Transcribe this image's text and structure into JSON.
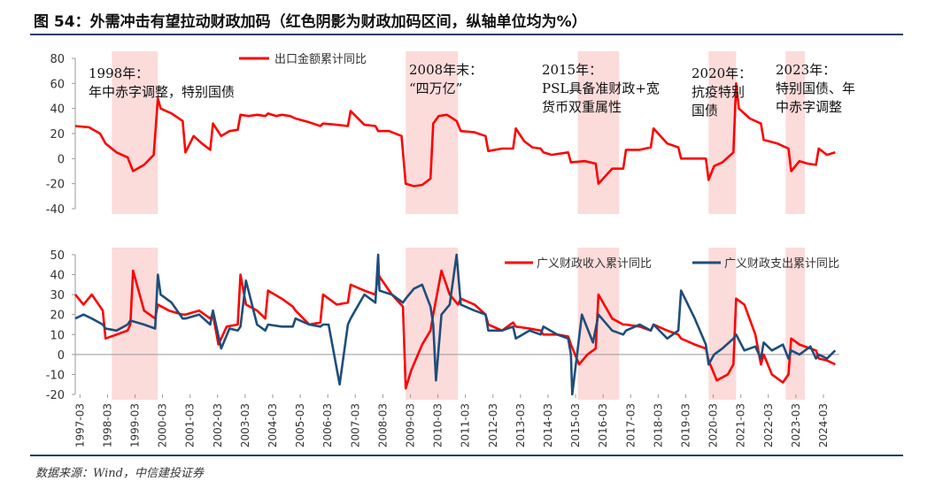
{
  "figure": {
    "title": "图 54：外需冲击有望拉动财政加码（红色阴影为财政加码区间，纵轴单位均为%）",
    "source": "数据来源：Wind，中信建投证券"
  },
  "colors": {
    "red": "#ff0000",
    "blue": "#1f4e79",
    "shade": "#fbd5d5",
    "rule": "#14406b",
    "axis": "#999999"
  },
  "chart_data": [
    {
      "type": "line",
      "title": "",
      "xlabel": "",
      "ylabel": "%",
      "ylim": [
        -40,
        80
      ],
      "yticks": [
        "80",
        "60",
        "40",
        "20",
        "0",
        "-20",
        "-40"
      ],
      "legend": "top-left",
      "shaded_ranges": [
        [
          1998.33,
          2000.0
        ],
        [
          2009.0,
          2010.9
        ],
        [
          2015.25,
          2016.75
        ],
        [
          2020.0,
          2021.0
        ],
        [
          2022.8,
          2023.5
        ]
      ],
      "annotations": [
        {
          "lines": [
            "1998年：",
            "年中赤字调整，特别国债"
          ]
        },
        {
          "lines": [
            "2008年末：",
            "“四万亿”"
          ]
        },
        {
          "lines": [
            "2015年：",
            "PSL具备准财政+宽",
            "货币双重属性"
          ]
        },
        {
          "lines": [
            "2020年：",
            "抗疫特别",
            "国债"
          ]
        },
        {
          "lines": [
            "2023年：",
            "特别国债、年",
            "中赤字调整"
          ]
        }
      ],
      "series": [
        {
          "name": "出口金额累计同比",
          "color": "red",
          "x": [
            1997.0,
            1997.5,
            1997.9,
            1998.1,
            1998.5,
            1998.9,
            1999.1,
            1999.5,
            1999.85,
            2000.0,
            2000.1,
            2000.5,
            2000.9,
            2001.0,
            2001.3,
            2001.6,
            2001.9,
            2002.0,
            2002.3,
            2002.6,
            2002.9,
            2003.0,
            2003.3,
            2003.6,
            2003.9,
            2004.0,
            2004.3,
            2004.5,
            2004.8,
            2005.0,
            2005.5,
            2005.9,
            2006.0,
            2006.5,
            2006.9,
            2007.0,
            2007.5,
            2007.9,
            2008.0,
            2008.4,
            2008.85,
            2009.0,
            2009.3,
            2009.6,
            2009.9,
            2010.0,
            2010.2,
            2010.5,
            2010.85,
            2011.0,
            2011.5,
            2011.9,
            2012.0,
            2012.5,
            2012.9,
            2013.0,
            2013.3,
            2013.6,
            2013.9,
            2014.0,
            2014.3,
            2014.6,
            2014.9,
            2015.0,
            2015.5,
            2015.9,
            2016.0,
            2016.5,
            2016.9,
            2017.0,
            2017.5,
            2017.9,
            2018.0,
            2018.5,
            2018.9,
            2019.0,
            2019.5,
            2019.9,
            2020.0,
            2020.2,
            2020.5,
            2020.9,
            2021.0,
            2021.1,
            2021.5,
            2021.9,
            2022.0,
            2022.5,
            2022.9,
            2023.0,
            2023.3,
            2023.6,
            2023.9,
            2024.0,
            2024.3,
            2024.6
          ],
          "y": [
            26,
            25,
            20,
            12,
            5,
            1,
            -10,
            -5,
            3,
            48,
            40,
            36,
            30,
            5,
            18,
            12,
            7,
            28,
            18,
            22,
            23,
            35,
            34,
            35,
            34,
            36,
            34,
            35,
            34,
            32,
            29,
            26,
            28,
            27,
            26,
            38,
            27,
            26,
            22,
            22,
            18,
            -20,
            -22,
            -21,
            -16,
            28,
            34,
            35,
            30,
            22,
            21,
            18,
            6,
            8,
            8,
            24,
            14,
            9,
            8,
            5,
            3,
            4,
            5,
            -3,
            -2,
            -4,
            -20,
            -8,
            -8,
            7,
            7,
            9,
            24,
            12,
            9,
            0,
            0,
            0,
            -17,
            -6,
            -3,
            5,
            60,
            40,
            32,
            28,
            15,
            12,
            8,
            -10,
            -2,
            -4,
            -5,
            8,
            3,
            5
          ]
        }
      ]
    },
    {
      "type": "line",
      "title": "",
      "xlabel": "",
      "ylabel": "%",
      "ylim": [
        -20,
        50
      ],
      "yticks": [
        "50",
        "40",
        "30",
        "20",
        "10",
        "0",
        "-10",
        "-20"
      ],
      "legend": "top-right",
      "categories": [
        "1997-03",
        "1998-03",
        "1999-03",
        "2000-03",
        "2001-03",
        "2002-03",
        "2003-03",
        "2004-03",
        "2005-03",
        "2006-03",
        "2007-03",
        "2008-03",
        "2009-03",
        "2010-03",
        "2011-03",
        "2012-03",
        "2013-03",
        "2014-03",
        "2015-03",
        "2016-03",
        "2017-03",
        "2018-03",
        "2019-03",
        "2020-03",
        "2021-03",
        "2022-03",
        "2023-03",
        "2024-03"
      ],
      "shaded_ranges": [
        [
          1998.33,
          2000.0
        ],
        [
          2009.0,
          2010.9
        ],
        [
          2015.25,
          2016.75
        ],
        [
          2020.0,
          2021.0
        ],
        [
          2022.8,
          2023.5
        ]
      ],
      "series": [
        {
          "name": "广义财政收入累计同比",
          "color": "red",
          "x": [
            1997.0,
            1997.3,
            1997.6,
            1998.0,
            1998.1,
            1998.5,
            1998.9,
            1999.0,
            1999.1,
            1999.5,
            1999.9,
            2000.0,
            2000.4,
            2000.9,
            2001.0,
            2001.5,
            2001.9,
            2002.0,
            2002.2,
            2002.5,
            2002.9,
            2003.0,
            2003.2,
            2003.6,
            2003.9,
            2004.0,
            2004.5,
            2004.9,
            2005.0,
            2005.5,
            2005.9,
            2006.0,
            2006.5,
            2006.9,
            2007.0,
            2007.5,
            2007.9,
            2008.0,
            2008.5,
            2008.9,
            2009.0,
            2009.2,
            2009.6,
            2009.9,
            2010.0,
            2010.3,
            2010.6,
            2010.9,
            2011.0,
            2011.5,
            2011.9,
            2012.0,
            2012.5,
            2012.9,
            2013.0,
            2013.5,
            2013.9,
            2014.0,
            2014.5,
            2014.9,
            2015.0,
            2015.3,
            2015.6,
            2015.9,
            2016.0,
            2016.5,
            2016.9,
            2017.0,
            2017.5,
            2017.9,
            2018.0,
            2018.5,
            2018.9,
            2019.0,
            2019.5,
            2019.9,
            2020.0,
            2020.3,
            2020.7,
            2020.9,
            2021.0,
            2021.3,
            2021.7,
            2021.9,
            2022.0,
            2022.3,
            2022.7,
            2022.9,
            2023.0,
            2023.3,
            2023.7,
            2023.9,
            2024.0,
            2024.3,
            2024.6
          ],
          "y": [
            30,
            25,
            30,
            22,
            8,
            10,
            12,
            15,
            42,
            22,
            18,
            25,
            22,
            20,
            20,
            22,
            18,
            20,
            5,
            14,
            15,
            40,
            25,
            22,
            18,
            32,
            28,
            24,
            22,
            15,
            16,
            30,
            25,
            26,
            35,
            32,
            30,
            40,
            30,
            24,
            -17,
            -8,
            5,
            12,
            20,
            42,
            30,
            25,
            28,
            25,
            20,
            15,
            12,
            16,
            14,
            13,
            12,
            10,
            10,
            9,
            5,
            -5,
            0,
            3,
            30,
            18,
            15,
            15,
            14,
            12,
            15,
            12,
            10,
            8,
            5,
            3,
            -3,
            -13,
            -10,
            -5,
            28,
            25,
            10,
            -5,
            0,
            -10,
            -14,
            -10,
            8,
            5,
            3,
            2,
            -2,
            -3,
            -5
          ]
        },
        {
          "name": "广义财政支出累计同比",
          "color": "blue",
          "x": [
            1997.0,
            1997.3,
            1997.6,
            1998.0,
            1998.1,
            1998.5,
            1998.9,
            1999.0,
            1999.5,
            1999.9,
            2000.0,
            2000.1,
            2000.5,
            2000.9,
            2001.0,
            2001.5,
            2001.9,
            2002.0,
            2002.3,
            2002.6,
            2002.9,
            2003.0,
            2003.2,
            2003.6,
            2003.9,
            2004.0,
            2004.5,
            2004.9,
            2005.0,
            2005.5,
            2005.9,
            2006.0,
            2006.2,
            2006.6,
            2006.9,
            2007.0,
            2007.5,
            2007.9,
            2008.0,
            2008.05,
            2008.5,
            2008.9,
            2009.0,
            2009.3,
            2009.6,
            2009.9,
            2010.0,
            2010.1,
            2010.3,
            2010.6,
            2010.85,
            2011.0,
            2011.5,
            2011.9,
            2012.0,
            2012.5,
            2012.9,
            2013.0,
            2013.5,
            2013.9,
            2014.0,
            2014.5,
            2014.9,
            2015.0,
            2015.05,
            2015.4,
            2015.8,
            2016.0,
            2016.5,
            2016.9,
            2017.0,
            2017.5,
            2017.9,
            2018.0,
            2018.5,
            2018.9,
            2019.0,
            2019.5,
            2019.9,
            2020.0,
            2020.2,
            2020.5,
            2020.9,
            2021.0,
            2021.3,
            2021.7,
            2021.9,
            2022.0,
            2022.3,
            2022.7,
            2022.9,
            2023.0,
            2023.3,
            2023.7,
            2023.9,
            2024.0,
            2024.3,
            2024.6
          ],
          "y": [
            18,
            20,
            18,
            15,
            13,
            12,
            15,
            17,
            15,
            13,
            40,
            30,
            26,
            18,
            18,
            20,
            15,
            22,
            3,
            13,
            12,
            14,
            37,
            15,
            12,
            15,
            14,
            14,
            18,
            15,
            14,
            15,
            15,
            -15,
            15,
            18,
            30,
            26,
            50,
            32,
            30,
            26,
            28,
            33,
            35,
            24,
            15,
            -13,
            20,
            25,
            50,
            25,
            22,
            20,
            12,
            12,
            14,
            8,
            12,
            10,
            14,
            10,
            8,
            0,
            -20,
            20,
            6,
            20,
            12,
            10,
            12,
            15,
            12,
            15,
            8,
            12,
            32,
            18,
            5,
            -5,
            0,
            3,
            8,
            10,
            2,
            4,
            -2,
            6,
            2,
            5,
            -2,
            2,
            0,
            4,
            -2,
            0,
            -2,
            2
          ]
        }
      ]
    }
  ]
}
